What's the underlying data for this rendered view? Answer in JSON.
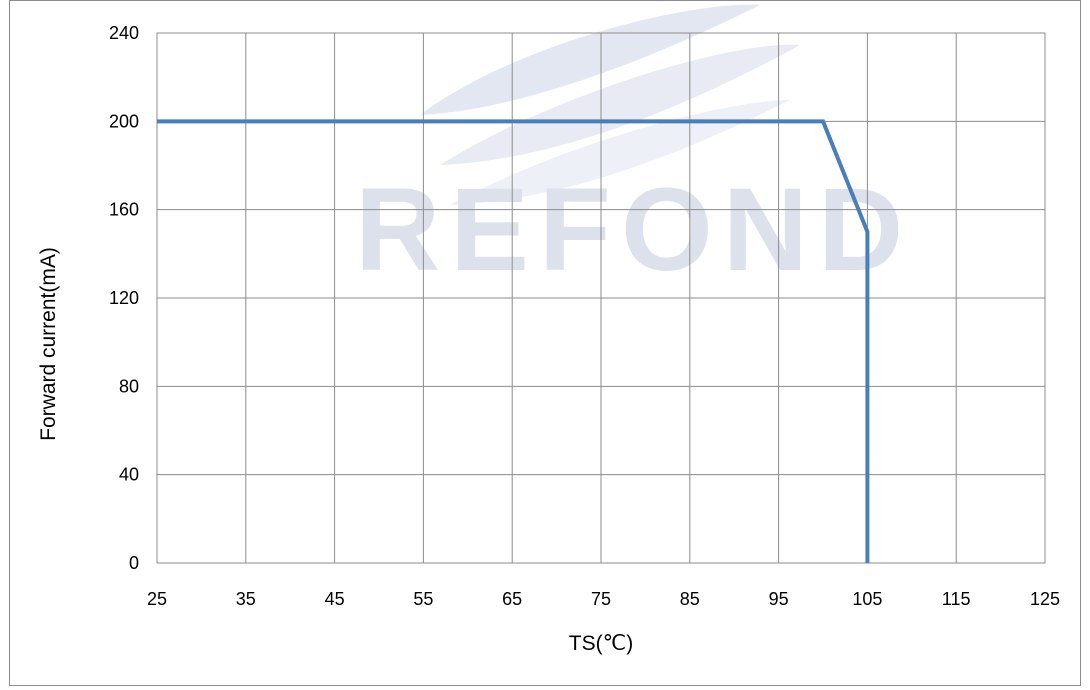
{
  "chart_data": {
    "type": "line",
    "xlabel": "TS(℃)",
    "ylabel": "Forward current(mA)",
    "xlim": [
      25,
      125
    ],
    "ylim": [
      0,
      240
    ],
    "x_ticks": [
      "25",
      "35",
      "45",
      "55",
      "65",
      "75",
      "85",
      "95",
      "105",
      "115",
      "125"
    ],
    "y_ticks": [
      "0",
      "40",
      "80",
      "120",
      "160",
      "200",
      "240"
    ],
    "grid": true,
    "series": [
      {
        "x": [
          25,
          100,
          105,
          105
        ],
        "y": [
          200,
          200,
          150,
          0
        ],
        "color": "#4a7ebb"
      }
    ]
  },
  "watermark": {
    "text": "REFOND"
  }
}
